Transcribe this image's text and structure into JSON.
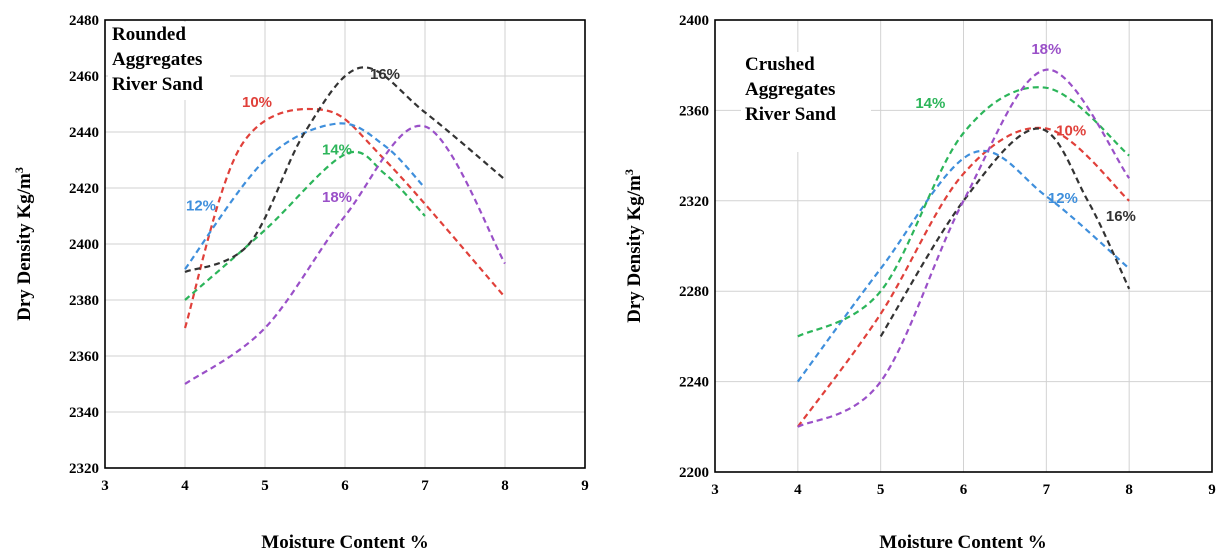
{
  "chart_data": [
    {
      "type": "line",
      "annotation": [
        "Rounded",
        "Aggregates",
        "River Sand"
      ],
      "xlabel": "Moisture Content %",
      "ylabel": "Dry Density",
      "yunit": "Kg/m",
      "yunit_sup": "3",
      "xlim": [
        3,
        9
      ],
      "ylim": [
        2320,
        2480
      ],
      "xticks": [
        3,
        4,
        5,
        6,
        7,
        8,
        9
      ],
      "yticks": [
        2320,
        2340,
        2360,
        2380,
        2400,
        2420,
        2440,
        2460,
        2480
      ],
      "grid": true,
      "series": [
        {
          "name": "10%",
          "color": "#e0403a",
          "x": [
            4,
            4.7,
            5.7,
            6.5,
            8
          ],
          "y": [
            2370,
            2435,
            2448,
            2430,
            2381
          ]
        },
        {
          "name": "12%",
          "color": "#3f8fdc",
          "x": [
            4,
            5,
            5.9,
            6.5,
            7
          ],
          "y": [
            2391,
            2430,
            2443,
            2435,
            2420
          ]
        },
        {
          "name": "14%",
          "color": "#2cb55a",
          "x": [
            4,
            5,
            6,
            6.5,
            7
          ],
          "y": [
            2380,
            2405,
            2432,
            2425,
            2410
          ]
        },
        {
          "name": "16%",
          "color": "#333333",
          "x": [
            4,
            4.8,
            5.5,
            6.2,
            7,
            8
          ],
          "y": [
            2390,
            2400,
            2440,
            2463,
            2447,
            2423
          ]
        },
        {
          "name": "18%",
          "color": "#9a50c8",
          "x": [
            4,
            5,
            6,
            7,
            8
          ],
          "y": [
            2350,
            2370,
            2410,
            2442,
            2393
          ]
        }
      ],
      "labels": [
        {
          "series": "16%",
          "x": 6.5,
          "y": 2459
        },
        {
          "series": "10%",
          "x": 4.9,
          "y": 2449
        },
        {
          "series": "14%",
          "x": 5.9,
          "y": 2432
        },
        {
          "series": "12%",
          "x": 4.2,
          "y": 2412
        },
        {
          "series": "18%",
          "x": 5.9,
          "y": 2415
        }
      ]
    },
    {
      "type": "line",
      "annotation": [
        "Crushed",
        "Aggregates",
        "River Sand"
      ],
      "xlabel": "Moisture Content %",
      "ylabel": "Dry Density",
      "yunit": "Kg/m",
      "yunit_sup": "3",
      "xlim": [
        3,
        9
      ],
      "ylim": [
        2200,
        2400
      ],
      "xticks": [
        3,
        4,
        5,
        6,
        7,
        8,
        9
      ],
      "yticks": [
        2200,
        2240,
        2280,
        2320,
        2360,
        2400
      ],
      "grid": true,
      "series": [
        {
          "name": "10%",
          "color": "#e0403a",
          "x": [
            4,
            5,
            6,
            7,
            8
          ],
          "y": [
            2220,
            2270,
            2332,
            2352,
            2320
          ]
        },
        {
          "name": "12%",
          "color": "#3f8fdc",
          "x": [
            4,
            5,
            6.1,
            7,
            8
          ],
          "y": [
            2240,
            2290,
            2341,
            2322,
            2290
          ]
        },
        {
          "name": "14%",
          "color": "#2cb55a",
          "x": [
            4,
            5,
            6,
            7,
            8
          ],
          "y": [
            2260,
            2280,
            2350,
            2370,
            2340
          ]
        },
        {
          "name": "16%",
          "color": "#333333",
          "x": [
            5,
            6,
            6.9,
            7.5,
            8
          ],
          "y": [
            2260,
            2320,
            2352,
            2320,
            2281
          ]
        },
        {
          "name": "18%",
          "color": "#9a50c8",
          "x": [
            4,
            5,
            6,
            7,
            8
          ],
          "y": [
            2220,
            2240,
            2320,
            2378,
            2330
          ]
        }
      ],
      "labels": [
        {
          "series": "18%",
          "x": 7.0,
          "y": 2385
        },
        {
          "series": "14%",
          "x": 5.6,
          "y": 2361
        },
        {
          "series": "10%",
          "x": 7.3,
          "y": 2349
        },
        {
          "series": "12%",
          "x": 7.2,
          "y": 2319
        },
        {
          "series": "16%",
          "x": 7.9,
          "y": 2311
        }
      ]
    }
  ]
}
